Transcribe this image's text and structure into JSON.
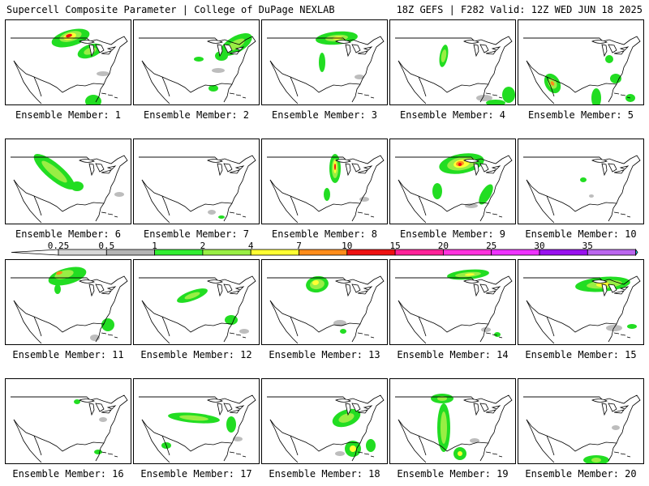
{
  "header": {
    "left_title": "Supercell Composite Parameter | College of DuPage NEXLAB",
    "right_title": "18Z GEFS | F282 Valid: 12Z WED JUN 18 2025"
  },
  "panels": [
    {
      "label": "Ensemble Member: 1"
    },
    {
      "label": "Ensemble Member: 2"
    },
    {
      "label": "Ensemble Member: 3"
    },
    {
      "label": "Ensemble Member: 4"
    },
    {
      "label": "Ensemble Member: 5"
    },
    {
      "label": "Ensemble Member: 6"
    },
    {
      "label": "Ensemble Member: 7"
    },
    {
      "label": "Ensemble Member: 8"
    },
    {
      "label": "Ensemble Member: 9"
    },
    {
      "label": "Ensemble Member: 10"
    },
    {
      "label": "Ensemble Member: 11"
    },
    {
      "label": "Ensemble Member: 12"
    },
    {
      "label": "Ensemble Member: 13"
    },
    {
      "label": "Ensemble Member: 14"
    },
    {
      "label": "Ensemble Member: 15"
    },
    {
      "label": "Ensemble Member: 16"
    },
    {
      "label": "Ensemble Member: 17"
    },
    {
      "label": "Ensemble Member: 18"
    },
    {
      "label": "Ensemble Member: 19"
    },
    {
      "label": "Ensemble Member: 20"
    }
  ],
  "colorbar": {
    "labels": [
      "0.25",
      "0.5",
      "1",
      "2",
      "4",
      "7",
      "10",
      "15",
      "20",
      "25",
      "30",
      "35"
    ],
    "colors": [
      "#d8d8d8",
      "#b4b4b4",
      "#33ee33",
      "#99ee44",
      "#ffff33",
      "#ff8c1a",
      "#ee1111",
      "#ff2299",
      "#ff33dd",
      "#ee33ff",
      "#9911ee",
      "#bb66ee",
      "#11dddd"
    ]
  },
  "colors": {
    "gray": "#bdbdbd",
    "green": "#22dd22",
    "lime": "#99ee44",
    "yellow": "#ffff33",
    "orange": "#ff8c1a",
    "red": "#ee1111"
  }
}
